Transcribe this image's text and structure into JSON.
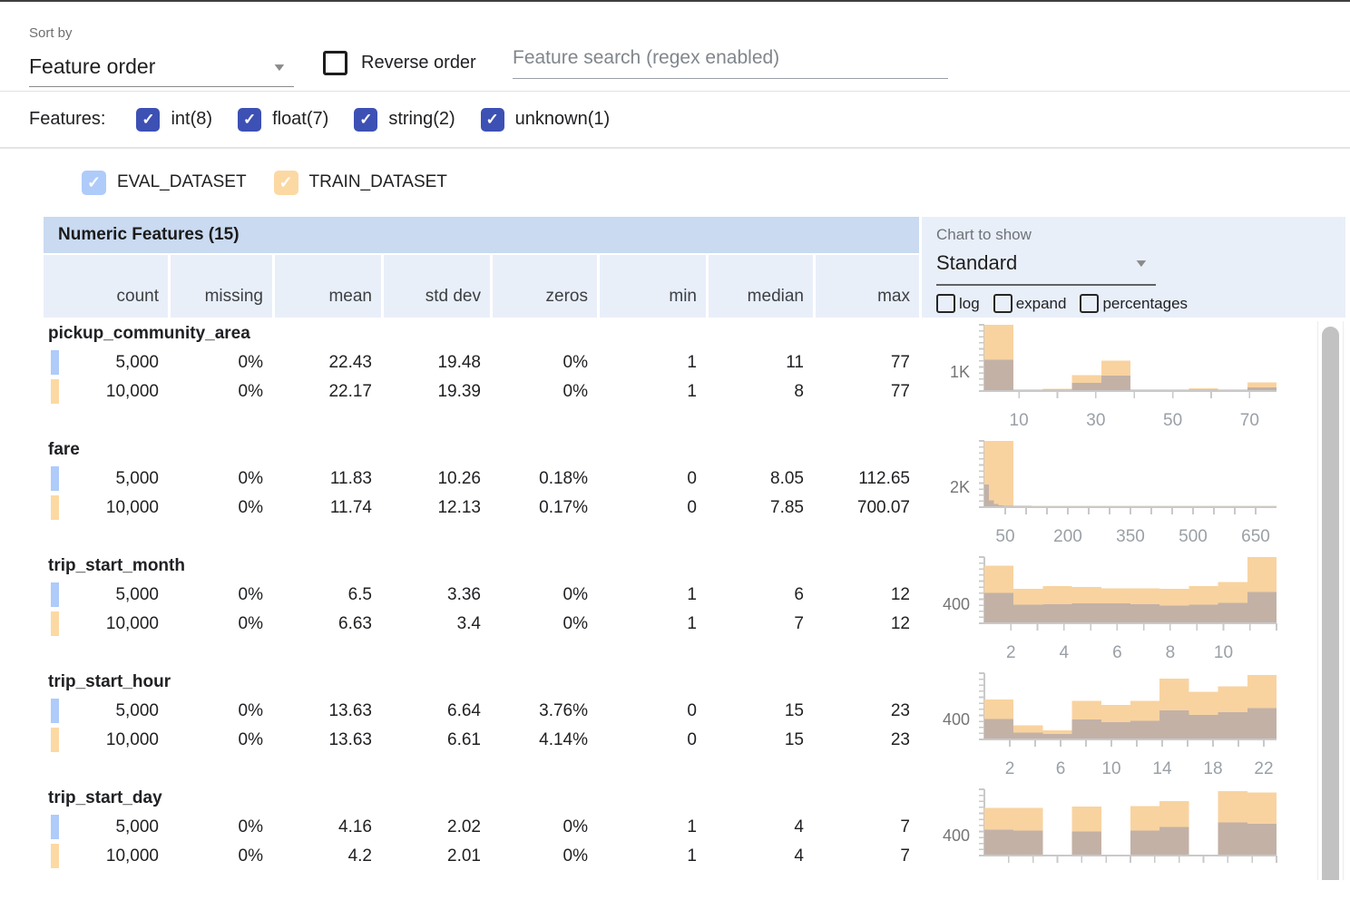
{
  "icons": {
    "check": "✓",
    "dropdown": "▼"
  },
  "colors": {
    "accent_indigo": "#3d50b4",
    "eval_blue": "#aecbfa",
    "train_orange": "#fcd9a3",
    "bar_train": "#f8d3a0",
    "bar_eval": "#c3b1a6",
    "header_title_bg": "#c9daf1",
    "header_cols_bg": "#e9eff9",
    "axis": "#c9c9c9",
    "tick_label": "#9aa0a6",
    "y_label": "#757575",
    "scroll_thumb": "#c2c2c2"
  },
  "toolbar": {
    "sort_by_label": "Sort by",
    "sort_value": "Feature order",
    "reverse_label": "Reverse order",
    "search_placeholder": "Feature search (regex enabled)"
  },
  "filters": {
    "label": "Features:",
    "types": [
      {
        "label": "int(8)"
      },
      {
        "label": "float(7)"
      },
      {
        "label": "string(2)"
      },
      {
        "label": "unknown(1)"
      }
    ]
  },
  "datasets": [
    {
      "name": "EVAL_DATASET",
      "color": "#aecbfa"
    },
    {
      "name": "TRAIN_DATASET",
      "color": "#fcd9a3"
    }
  ],
  "table": {
    "title": "Numeric Features (15)",
    "columns": [
      "count",
      "missing",
      "mean",
      "std dev",
      "zeros",
      "min",
      "median",
      "max"
    ],
    "chart_controls": {
      "label": "Chart to show",
      "selected": "Standard",
      "options_checkboxes": [
        "log",
        "expand",
        "percentages"
      ]
    },
    "features": [
      {
        "name": "pickup_community_area",
        "rows": [
          [
            "5,000",
            "0%",
            "22.43",
            "19.48",
            "0%",
            "1",
            "11",
            "77"
          ],
          [
            "10,000",
            "0%",
            "22.17",
            "19.39",
            "0%",
            "1",
            "8",
            "77"
          ]
        ]
      },
      {
        "name": "fare",
        "rows": [
          [
            "5,000",
            "0%",
            "11.83",
            "10.26",
            "0.18%",
            "0",
            "8.05",
            "112.65"
          ],
          [
            "10,000",
            "0%",
            "11.74",
            "12.13",
            "0.17%",
            "0",
            "7.85",
            "700.07"
          ]
        ]
      },
      {
        "name": "trip_start_month",
        "rows": [
          [
            "5,000",
            "0%",
            "6.5",
            "3.36",
            "0%",
            "1",
            "6",
            "12"
          ],
          [
            "10,000",
            "0%",
            "6.63",
            "3.4",
            "0%",
            "1",
            "7",
            "12"
          ]
        ]
      },
      {
        "name": "trip_start_hour",
        "rows": [
          [
            "5,000",
            "0%",
            "13.63",
            "6.64",
            "3.76%",
            "0",
            "15",
            "23"
          ],
          [
            "10,000",
            "0%",
            "13.63",
            "6.61",
            "4.14%",
            "0",
            "15",
            "23"
          ]
        ]
      },
      {
        "name": "trip_start_day",
        "rows": [
          [
            "5,000",
            "0%",
            "4.16",
            "2.02",
            "0%",
            "1",
            "4",
            "7"
          ],
          [
            "10,000",
            "0%",
            "4.2",
            "2.01",
            "0%",
            "1",
            "4",
            "7"
          ]
        ]
      }
    ]
  },
  "chart_data": [
    {
      "feature": "pickup_community_area",
      "type": "bar",
      "x_range": [
        1,
        77
      ],
      "y_axis_label": "1K",
      "y_label_frac": 0.26,
      "ticks": [
        10,
        20,
        30,
        40,
        50,
        60,
        70
      ],
      "tick_label_values": [
        10,
        30,
        50,
        70
      ],
      "tick_labels": [
        "10",
        "30",
        "50",
        "70"
      ],
      "series": [
        {
          "name": "TRAIN_DATASET",
          "heights": [
            1.0,
            0.012,
            0.035,
            0.24,
            0.46,
            0.015,
            0.006,
            0.04,
            0.012,
            0.13
          ]
        },
        {
          "name": "EVAL_DATASET",
          "heights": [
            0.47,
            0.006,
            0.015,
            0.12,
            0.23,
            0.008,
            0.003,
            0.015,
            0.006,
            0.055
          ]
        }
      ]
    },
    {
      "feature": "fare",
      "type": "bar",
      "x_range": [
        0,
        700
      ],
      "y_axis_label": "2K",
      "y_label_frac": 0.27,
      "ticks": [
        50,
        100,
        150,
        200,
        250,
        300,
        350,
        400,
        450,
        500,
        550,
        600,
        650
      ],
      "tick_label_values": [
        50,
        200,
        350,
        500,
        650
      ],
      "tick_labels": [
        "50",
        "200",
        "350",
        "500",
        "650"
      ],
      "series": [
        {
          "name": "TRAIN_DATASET",
          "heights": [
            1.0,
            0.012,
            0.008,
            0.006,
            0.004,
            0.002,
            0.002,
            0.002,
            0.002,
            0.004
          ]
        },
        {
          "name": "EVAL_DATASET",
          "range": [
            0,
            112.65
          ],
          "heights": [
            0.34,
            0.1,
            0.05,
            0.025,
            0.012,
            0.008,
            0.006,
            0.004,
            0.003,
            0.003
          ]
        }
      ]
    },
    {
      "feature": "trip_start_month",
      "type": "bar",
      "x_range": [
        1,
        12
      ],
      "y_axis_label": "400",
      "y_label_frac": 0.26,
      "ticks": [
        2,
        3,
        4,
        5,
        6,
        7,
        8,
        9,
        10,
        11,
        12
      ],
      "tick_label_values": [
        2,
        4,
        6,
        8,
        10
      ],
      "tick_labels": [
        "2",
        "4",
        "6",
        "8",
        "10"
      ],
      "series": [
        {
          "name": "TRAIN_DATASET",
          "heights": [
            0.87,
            0.52,
            0.56,
            0.55,
            0.53,
            0.53,
            0.52,
            0.56,
            0.62,
            1.0
          ]
        },
        {
          "name": "EVAL_DATASET",
          "heights": [
            0.46,
            0.28,
            0.29,
            0.3,
            0.3,
            0.29,
            0.27,
            0.28,
            0.31,
            0.47
          ]
        }
      ]
    },
    {
      "feature": "trip_start_hour",
      "type": "bar",
      "x_range": [
        0,
        23
      ],
      "y_axis_label": "400",
      "y_label_frac": 0.27,
      "ticks": [
        2,
        4,
        6,
        8,
        10,
        12,
        14,
        16,
        18,
        20,
        22
      ],
      "tick_label_values": [
        2,
        6,
        10,
        14,
        18,
        22
      ],
      "tick_labels": [
        "2",
        "6",
        "10",
        "14",
        "18",
        "22"
      ],
      "series": [
        {
          "name": "TRAIN_DATASET",
          "heights": [
            0.6,
            0.21,
            0.14,
            0.58,
            0.52,
            0.58,
            0.92,
            0.72,
            0.8,
            0.97
          ]
        },
        {
          "name": "EVAL_DATASET",
          "heights": [
            0.31,
            0.1,
            0.08,
            0.3,
            0.26,
            0.28,
            0.44,
            0.37,
            0.41,
            0.47
          ]
        }
      ]
    },
    {
      "feature": "trip_start_day",
      "type": "bar",
      "x_range": [
        1,
        7
      ],
      "y_axis_label": "400",
      "y_label_frac": 0.27,
      "ticks": [
        1.5,
        2,
        2.5,
        3,
        3.5,
        4,
        4.5,
        5,
        5.5,
        6,
        6.5,
        7
      ],
      "tick_label_values": [],
      "tick_labels": [],
      "series": [
        {
          "name": "TRAIN_DATASET",
          "heights": [
            0.72,
            0.72,
            0,
            0.74,
            0,
            0.75,
            0.82,
            0,
            0.97,
            0.95
          ]
        },
        {
          "name": "EVAL_DATASET",
          "heights": [
            0.39,
            0.38,
            0,
            0.36,
            0,
            0.38,
            0.43,
            0,
            0.5,
            0.48
          ]
        }
      ]
    }
  ]
}
